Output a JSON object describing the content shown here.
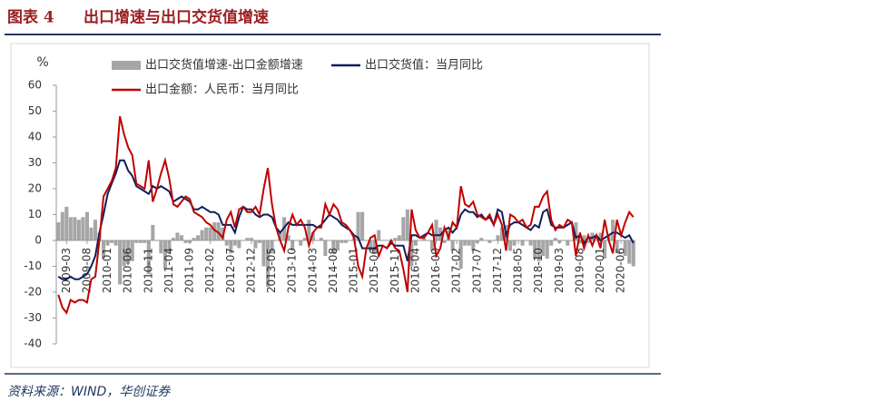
{
  "figure_label": "图表 4",
  "title": "出口增速与出口交货值增速",
  "source": "资料来源：WIND，华创证券",
  "chart_data": {
    "type": "line",
    "y_label": "%",
    "categories": [
      null,
      null,
      "2009-03",
      null,
      null,
      null,
      null,
      "2009-08",
      null,
      null,
      null,
      null,
      "2010-01",
      null,
      null,
      null,
      null,
      "2010-06",
      null,
      null,
      null,
      null,
      "2010-11",
      null,
      null,
      null,
      null,
      "2011-04",
      null,
      null,
      null,
      null,
      "2011-09",
      null,
      null,
      null,
      null,
      "2012-02",
      null,
      null,
      null,
      null,
      "2012-07",
      null,
      null,
      null,
      null,
      "2012-12",
      null,
      null,
      null,
      null,
      "2013-05",
      null,
      null,
      null,
      null,
      "2013-10",
      null,
      null,
      null,
      null,
      "2014-03",
      null,
      null,
      null,
      null,
      "2014-08",
      null,
      null,
      null,
      null,
      "2015-01",
      null,
      null,
      null,
      null,
      "2015-06",
      null,
      null,
      null,
      null,
      "2015-11",
      null,
      null,
      null,
      null,
      "2016-04",
      null,
      null,
      null,
      null,
      "2016-09",
      null,
      null,
      null,
      null,
      "2017-02",
      null,
      null,
      null,
      null,
      "2017-07",
      null,
      null,
      null,
      null,
      "2017-12",
      null,
      null,
      null,
      null,
      "2018-05",
      null,
      null,
      null,
      null,
      "2018-10",
      null,
      null,
      null,
      null,
      "2019-03",
      null,
      null,
      null,
      null,
      "2019-08",
      null,
      null,
      null,
      null,
      "2020-01",
      null,
      null,
      null,
      null,
      "2020-06",
      null,
      null,
      null
    ],
    "series": [
      {
        "name": "出口交货值增速-出口金额增速",
        "type": "bar",
        "color": "#a6a6a6",
        "values": [
          7,
          11,
          13,
          9,
          9,
          8,
          9,
          11,
          5,
          8,
          3,
          -7,
          -2,
          -1,
          -2,
          -17,
          -10,
          -9,
          -8,
          -1,
          -1,
          -1,
          -13,
          6,
          0,
          -5,
          -11,
          -5,
          1,
          3,
          2,
          -1,
          -1,
          1,
          2,
          4,
          5,
          5,
          7,
          7,
          5,
          -2,
          -5,
          -2,
          -3,
          0,
          1,
          1,
          -3,
          -1,
          -10,
          -18,
          -5,
          0,
          3,
          9,
          2,
          -4,
          0,
          -2,
          1,
          8,
          3,
          0,
          1,
          -6,
          0,
          -5,
          -4,
          -1,
          -1,
          0,
          1,
          11,
          11,
          0,
          -4,
          -5,
          4,
          0,
          0,
          -1,
          1,
          2,
          9,
          12,
          -10,
          -2,
          0,
          1,
          0,
          -4,
          8,
          5,
          -1,
          4,
          -4,
          0,
          -11,
          -2,
          -2,
          -4,
          -1,
          1,
          0,
          -1,
          0,
          2,
          5,
          6,
          -4,
          -2,
          0,
          -2,
          0,
          -2,
          -7,
          -8,
          -6,
          -7,
          -2,
          1,
          -1,
          0,
          -2,
          0,
          7,
          -1,
          2,
          -1,
          3,
          0,
          3,
          -7,
          2,
          8,
          -5,
          0,
          -6,
          -9,
          -10
        ]
      },
      {
        "name": "出口交货值：当月同比",
        "type": "line",
        "color": "#0f1f5a",
        "values": [
          -14,
          -15,
          -15,
          -14,
          -15,
          -15,
          -14,
          -13,
          -10,
          -6,
          3,
          10,
          18,
          22,
          26,
          31,
          31,
          27,
          25,
          21,
          20,
          19,
          18,
          21,
          20,
          21,
          20,
          19,
          15,
          16,
          17,
          16,
          15,
          12,
          12,
          13,
          12,
          11,
          11,
          10,
          6,
          6,
          6,
          3,
          9,
          13,
          12,
          12,
          10,
          9,
          10,
          10,
          9,
          5,
          3,
          5,
          7,
          6,
          6,
          6,
          6,
          6,
          6,
          5,
          6,
          8,
          10,
          9,
          8,
          6,
          5,
          4,
          2,
          1,
          -3,
          -3,
          -3,
          -3,
          -2,
          -2,
          -3,
          -1,
          -2,
          -2,
          -2,
          -8,
          2,
          2,
          1,
          2,
          3,
          2,
          2,
          2,
          4,
          5,
          3,
          5,
          10,
          12,
          11,
          11,
          9,
          10,
          8,
          9,
          6,
          12,
          11,
          2,
          6,
          7,
          7,
          6,
          5,
          4,
          6,
          5,
          11,
          12,
          6,
          5,
          5,
          5,
          6,
          7,
          1,
          2,
          -1,
          1,
          1,
          2,
          0,
          1,
          2,
          3,
          3,
          2,
          1,
          2,
          -1
        ]
      },
      {
        "name": "出口金额：人民币：当月同比",
        "type": "line",
        "color": "#c00000",
        "values": [
          -21,
          -26,
          -28,
          -23,
          -24,
          -23,
          -23,
          -24,
          -15,
          -14,
          0,
          17,
          20,
          23,
          28,
          48,
          41,
          36,
          33,
          22,
          21,
          20,
          31,
          15,
          20,
          26,
          31,
          24,
          14,
          13,
          15,
          17,
          16,
          11,
          10,
          9,
          7,
          6,
          4,
          3,
          1,
          8,
          11,
          5,
          12,
          13,
          11,
          11,
          13,
          10,
          20,
          28,
          14,
          5,
          0,
          -4,
          5,
          10,
          6,
          8,
          5,
          -2,
          3,
          5,
          5,
          14,
          10,
          14,
          12,
          7,
          6,
          4,
          1,
          -10,
          -14,
          -3,
          1,
          2,
          -6,
          -2,
          -3,
          0,
          -3,
          -4,
          -11,
          -20,
          12,
          4,
          1,
          1,
          3,
          6,
          -6,
          -3,
          5,
          1,
          7,
          5,
          21,
          14,
          13,
          15,
          10,
          9,
          8,
          10,
          6,
          10,
          6,
          -4,
          10,
          9,
          7,
          8,
          5,
          6,
          13,
          13,
          17,
          19,
          8,
          4,
          6,
          5,
          8,
          7,
          -6,
          3,
          -3,
          2,
          -2,
          2,
          -3,
          8,
          0,
          -5,
          8,
          2,
          7,
          11,
          9
        ]
      }
    ],
    "ylim": [
      -40,
      60
    ],
    "yticks": [
      -40,
      -30,
      -20,
      -10,
      0,
      10,
      20,
      30,
      40,
      50,
      60
    ]
  }
}
